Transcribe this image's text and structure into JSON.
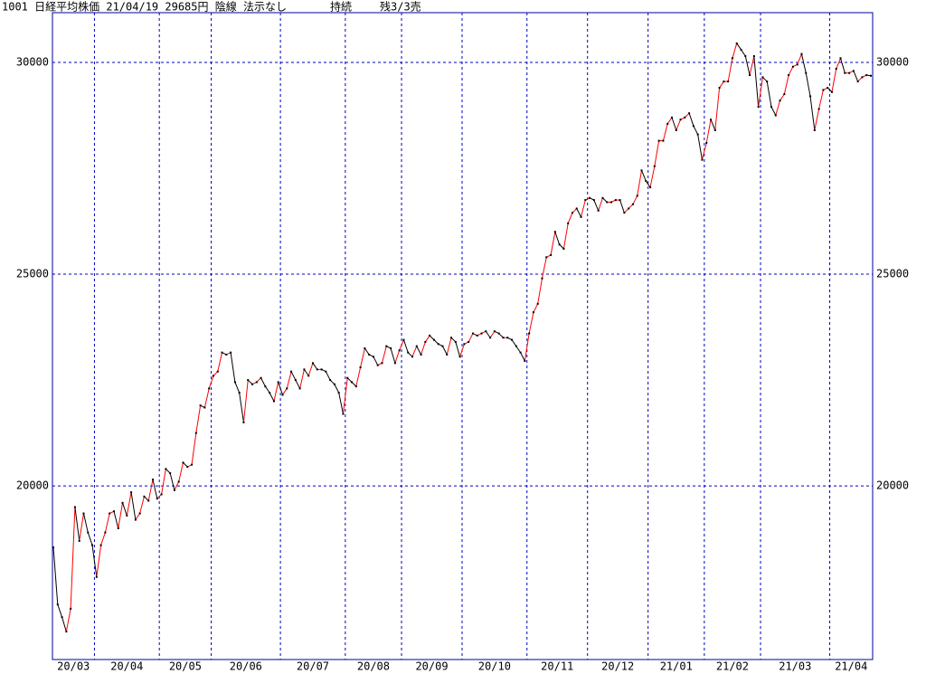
{
  "chart_data": {
    "type": "line",
    "title": "1001 日経平均株価 21/04/19 29685円 陰線 法示なし",
    "status": "持続",
    "signal": "残3/3売",
    "categories": [
      "20/03",
      null,
      null,
      null,
      null,
      null,
      null,
      null,
      null,
      null,
      "20/04",
      null,
      null,
      null,
      null,
      null,
      null,
      null,
      null,
      null,
      null,
      null,
      null,
      null,
      null,
      "20/05",
      null,
      null,
      null,
      null,
      null,
      null,
      null,
      null,
      null,
      null,
      null,
      "20/06",
      null,
      null,
      null,
      null,
      null,
      null,
      null,
      null,
      null,
      null,
      null,
      null,
      null,
      null,
      null,
      "20/07",
      null,
      null,
      null,
      null,
      null,
      null,
      null,
      null,
      null,
      null,
      null,
      null,
      null,
      null,
      "20/08",
      null,
      null,
      null,
      null,
      null,
      null,
      null,
      null,
      null,
      null,
      null,
      null,
      "20/09",
      null,
      null,
      null,
      null,
      null,
      null,
      null,
      null,
      null,
      null,
      null,
      null,
      null,
      "20/10",
      null,
      null,
      null,
      null,
      null,
      null,
      null,
      null,
      null,
      null,
      null,
      null,
      null,
      null,
      "20/11",
      null,
      null,
      null,
      null,
      null,
      null,
      null,
      null,
      null,
      null,
      null,
      null,
      null,
      "20/12",
      null,
      null,
      null,
      null,
      null,
      null,
      null,
      null,
      null,
      null,
      null,
      null,
      null,
      "21/01",
      null,
      null,
      null,
      null,
      null,
      null,
      null,
      null,
      null,
      null,
      null,
      null,
      "21/02",
      null,
      null,
      null,
      null,
      null,
      null,
      null,
      null,
      null,
      null,
      null,
      null,
      "21/03",
      null,
      null,
      null,
      null,
      null,
      null,
      null,
      null,
      null,
      null,
      null,
      null,
      null,
      null,
      null,
      "21/04",
      null,
      null,
      null,
      null,
      null,
      null,
      null,
      null,
      null
    ],
    "values": [
      18550,
      17200,
      16900,
      16560,
      17100,
      19500,
      18700,
      19350,
      18900,
      18600,
      17850,
      18600,
      18900,
      19350,
      19400,
      19000,
      19600,
      19300,
      19850,
      19200,
      19350,
      19750,
      19650,
      20150,
      19700,
      19800,
      20400,
      20300,
      19900,
      20100,
      20550,
      20450,
      20500,
      21250,
      21900,
      21850,
      22300,
      22600,
      22700,
      23150,
      23100,
      23150,
      22450,
      22200,
      21500,
      22500,
      22400,
      22450,
      22550,
      22350,
      22200,
      22000,
      22450,
      22150,
      22300,
      22700,
      22500,
      22300,
      22750,
      22600,
      22900,
      22750,
      22750,
      22700,
      22500,
      22400,
      22200,
      21700,
      22550,
      22450,
      22350,
      22800,
      23250,
      23100,
      23050,
      22850,
      22900,
      23300,
      23250,
      22900,
      23200,
      23450,
      23150,
      23050,
      23300,
      23100,
      23400,
      23550,
      23450,
      23350,
      23300,
      23100,
      23500,
      23400,
      23050,
      23350,
      23400,
      23600,
      23550,
      23600,
      23650,
      23500,
      23650,
      23600,
      23500,
      23500,
      23450,
      23300,
      23150,
      22950,
      23600,
      24100,
      24300,
      24900,
      25400,
      25450,
      26000,
      25700,
      25600,
      26200,
      26450,
      26550,
      26350,
      26750,
      26800,
      26750,
      26500,
      26800,
      26700,
      26700,
      26750,
      26750,
      26450,
      26550,
      26650,
      26850,
      27450,
      27200,
      27050,
      27550,
      28150,
      28150,
      28550,
      28700,
      28400,
      28650,
      28700,
      28800,
      28500,
      28300,
      27700,
      28100,
      28650,
      28400,
      29400,
      29550,
      29550,
      30100,
      30450,
      30300,
      30150,
      29700,
      30150,
      28950,
      29650,
      29550,
      28950,
      28750,
      29100,
      29250,
      29700,
      29900,
      29950,
      30200,
      29750,
      29200,
      28400,
      28900,
      29350,
      29400,
      29300,
      29850,
      30100,
      29750,
      29750,
      29800,
      29550,
      29650,
      29700,
      29685
    ],
    "up_color": "#ff0000",
    "down_color": "#000000",
    "dot_color": "#000000",
    "grid_color": "#0000c0",
    "ylim": [
      15900,
      31175
    ],
    "yticks": [
      20000,
      25000,
      30000
    ],
    "grid": true
  }
}
